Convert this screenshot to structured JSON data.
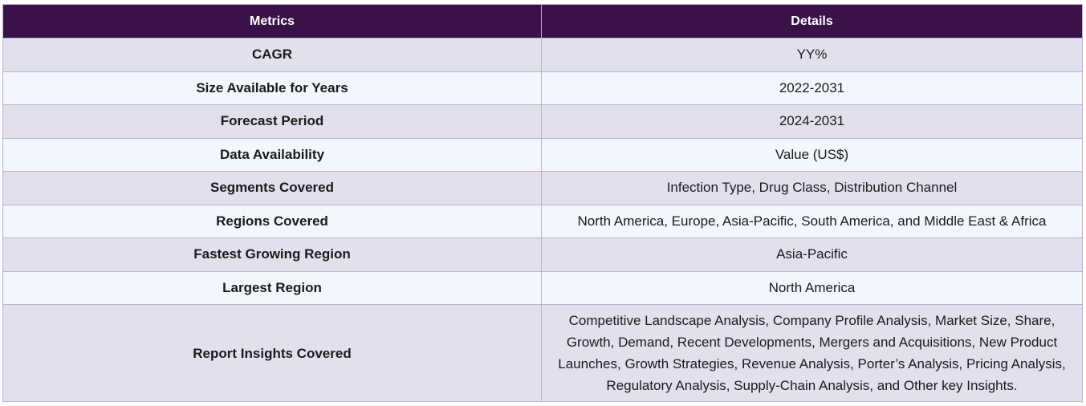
{
  "table": {
    "headers": [
      "Metrics",
      "Details"
    ],
    "rows": [
      {
        "metric": "CAGR",
        "detail": "YY%"
      },
      {
        "metric": "Size Available for Years",
        "detail": "2022-2031"
      },
      {
        "metric": "Forecast Period",
        "detail": "2024-2031"
      },
      {
        "metric": "Data Availability",
        "detail": "Value (US$)"
      },
      {
        "metric": "Segments Covered",
        "detail": "Infection Type, Drug Class, Distribution Channel"
      },
      {
        "metric": "Regions Covered",
        "detail": "North America, Europe, Asia-Pacific, South America, and Middle East & Africa"
      },
      {
        "metric": "Fastest Growing Region",
        "detail": "Asia-Pacific"
      },
      {
        "metric": "Largest Region",
        "detail": "North America"
      },
      {
        "metric": "Report Insights Covered",
        "detail": "Competitive Landscape Analysis, Company Profile Analysis, Market Size, Share, Growth, Demand, Recent Developments, Mergers and Acquisitions, New Product Launches, Growth Strategies, Revenue Analysis, Porter’s Analysis, Pricing Analysis, Regulatory Analysis, Supply-Chain Analysis, and Other key Insights."
      }
    ]
  },
  "colors": {
    "header_bg": "#3a1148",
    "row_odd_bg": "#e3dfec",
    "row_even_bg": "#f1f7fc",
    "border": "#b9b2cf"
  }
}
